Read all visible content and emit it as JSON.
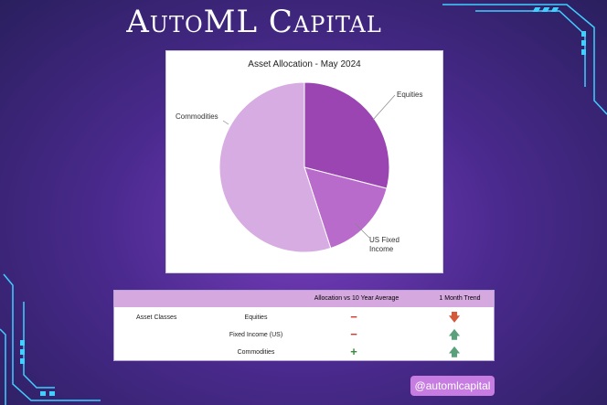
{
  "brand": {
    "title": "AutoML Capital"
  },
  "chart_data": {
    "type": "pie",
    "title": "Asset Allocation - May 2024",
    "slices": [
      {
        "label": "Equities",
        "value": 29,
        "color": "#9b45b3"
      },
      {
        "label": "US Fixed Income",
        "value": 16,
        "color": "#b96bcc"
      },
      {
        "label": "Commodities",
        "value": 55,
        "color": "#d7ace2"
      }
    ]
  },
  "table": {
    "headers": {
      "allocation": "Allocation vs 10 Year Average",
      "trend": "1 Month Trend"
    },
    "group_label": "Asset Classes",
    "rows": [
      {
        "asset": "Equities",
        "allocation_symbol": "−",
        "allocation_color": "#d23a2f",
        "trend_symbol": "🡇",
        "trend_color": "#d25a3a"
      },
      {
        "asset": "Fixed Income (US)",
        "allocation_symbol": "−",
        "allocation_color": "#d23a2f",
        "trend_symbol": "🡅",
        "trend_color": "#5aa07a"
      },
      {
        "asset": "Commodities",
        "allocation_symbol": "+",
        "allocation_color": "#3b8a3e",
        "trend_symbol": "🡅",
        "trend_color": "#5aa07a"
      }
    ]
  },
  "footer": {
    "handle": "@automlcapital"
  }
}
